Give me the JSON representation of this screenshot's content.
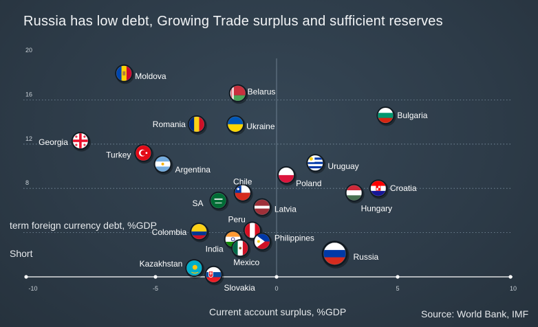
{
  "title": "Russia has low debt, Growing Trade surplus and sufficient reserves",
  "ylabel": "term foreign currency debt, %GDP",
  "ylabel_short": "Short",
  "xlabel": "Current account surplus, %GDP",
  "source": "Source: World Bank, IMF",
  "chart_data": {
    "type": "scatter",
    "title": "Russia has low debt, Growing Trade surplus and sufficient reserves",
    "xlabel": "Current account surplus, %GDP",
    "ylabel": "Short term foreign currency debt, %GDP",
    "xlim": [
      -10.5,
      10
    ],
    "ylim": [
      0,
      20
    ],
    "x_ticks": [
      "-10",
      "-5",
      "0",
      "5",
      "10"
    ],
    "y_ticks": [
      "20",
      "16",
      "12",
      "8"
    ],
    "grid": "dotted horizontal lines at 16, 12, 8 and 4; vertical line at x=0",
    "points": [
      {
        "label": "Moldova",
        "x": -6.3,
        "y": 18.4
      },
      {
        "label": "Belarus",
        "x": -1.6,
        "y": 16.6
      },
      {
        "label": "Bulgaria",
        "x": 4.5,
        "y": 14.6
      },
      {
        "label": "Romania",
        "x": -3.3,
        "y": 13.8
      },
      {
        "label": "Ukraine",
        "x": -1.7,
        "y": 13.8
      },
      {
        "label": "Georgia",
        "x": -8.1,
        "y": 12.3
      },
      {
        "label": "Turkey",
        "x": -5.5,
        "y": 11.2
      },
      {
        "label": "Argentina",
        "x": -4.7,
        "y": 10.2
      },
      {
        "label": "Uruguay",
        "x": 1.6,
        "y": 10.3
      },
      {
        "label": "Poland",
        "x": 0.4,
        "y": 9.2
      },
      {
        "label": "Chile",
        "x": -1.4,
        "y": 7.6
      },
      {
        "label": "Croatia",
        "x": 4.2,
        "y": 8.0
      },
      {
        "label": "Hungary",
        "x": 3.2,
        "y": 7.6
      },
      {
        "label": "SA",
        "x": -2.4,
        "y": 6.9
      },
      {
        "label": "Latvia",
        "x": -0.6,
        "y": 6.3
      },
      {
        "label": "Colombia",
        "x": -3.2,
        "y": 4.1
      },
      {
        "label": "Peru",
        "x": -1.0,
        "y": 4.2
      },
      {
        "label": "India",
        "x": -1.8,
        "y": 3.4
      },
      {
        "label": "Philippines",
        "x": -0.6,
        "y": 3.2
      },
      {
        "label": "Mexico",
        "x": -1.5,
        "y": 2.6
      },
      {
        "label": "Russia",
        "x": 2.4,
        "y": 2.1
      },
      {
        "label": "Kazakhstan",
        "x": -3.4,
        "y": 0.8
      },
      {
        "label": "Slovakia",
        "x": -2.6,
        "y": 0.2
      }
    ]
  }
}
